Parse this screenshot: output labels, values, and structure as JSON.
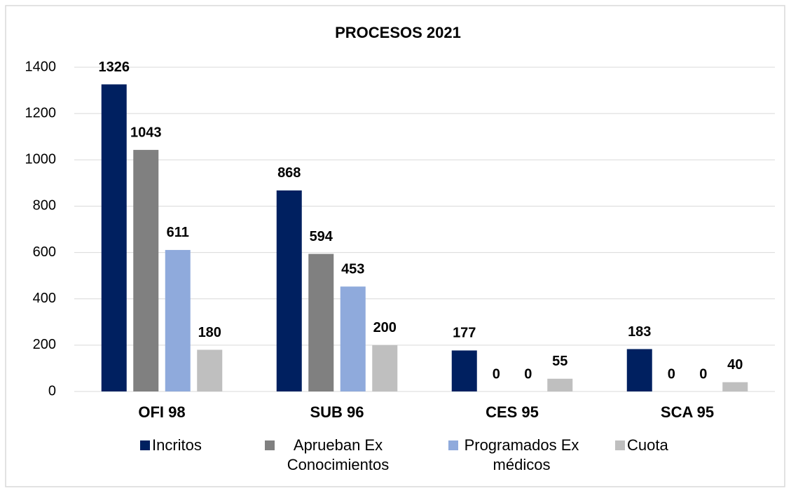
{
  "chart_data": {
    "type": "bar",
    "title": "PROCESOS 2021",
    "categories": [
      "OFI 98",
      "SUB 96",
      "CES 95",
      "SCA 95"
    ],
    "series": [
      {
        "name": "Incritos",
        "color": "#002060",
        "values": [
          1326,
          868,
          177,
          183
        ]
      },
      {
        "name": "Aprueban Ex Conocimientos",
        "color": "#808080",
        "values": [
          1043,
          594,
          0,
          0
        ]
      },
      {
        "name": "Programados Ex médicos",
        "color": "#8faadc",
        "values": [
          611,
          453,
          0,
          0
        ]
      },
      {
        "name": "Cuota",
        "color": "#bfbfbf",
        "values": [
          180,
          200,
          55,
          40
        ]
      }
    ],
    "ylim": [
      0,
      1400
    ],
    "yticks": [
      0,
      200,
      400,
      600,
      800,
      1000,
      1200,
      1400
    ],
    "grid": true,
    "legend": "bottom"
  }
}
